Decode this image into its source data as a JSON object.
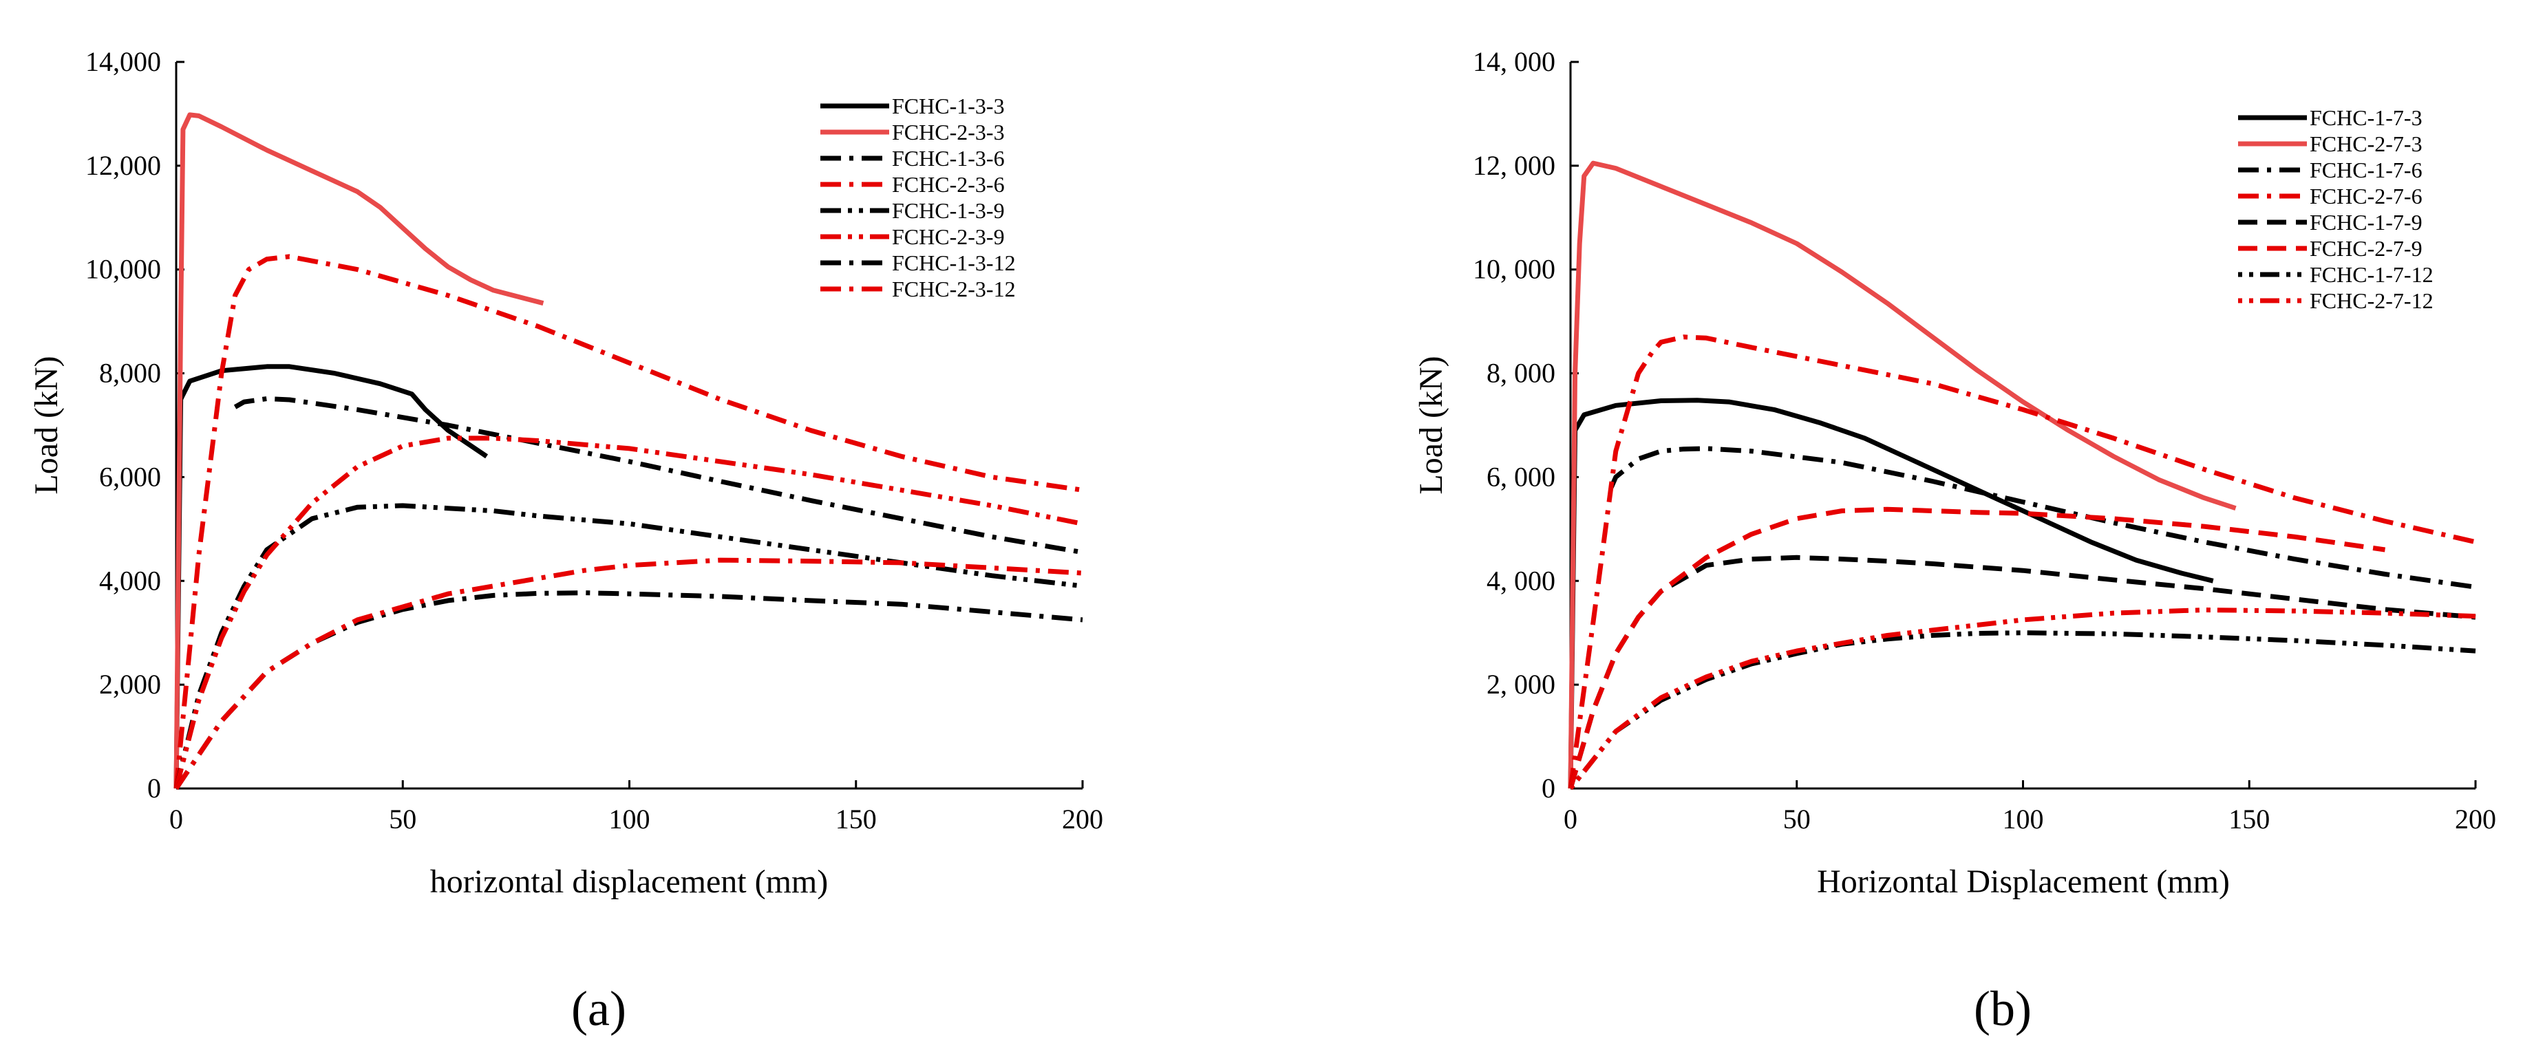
{
  "chart_data": [
    {
      "type": "line",
      "panel_label": "(a)",
      "xlabel": "horizontal displacement (mm)",
      "ylabel": "Load (kN)",
      "xlim": [
        0,
        200
      ],
      "ylim": [
        0,
        14000
      ],
      "xticks": [
        0,
        50,
        100,
        150,
        200
      ],
      "xtick_labels": [
        "0",
        "50",
        "100",
        "150",
        "200"
      ],
      "yticks": [
        0,
        2000,
        4000,
        6000,
        8000,
        10000,
        12000,
        14000
      ],
      "ytick_labels": [
        "0",
        "2,000",
        "4,000",
        "6,000",
        "8,000",
        "10,000",
        "12,000",
        "14,000"
      ],
      "legend_position": "top-right",
      "series": [
        {
          "name": "FCHC-1-3-3",
          "color": "#000000",
          "dash": "solid",
          "x": [
            0,
            1,
            3,
            10,
            20,
            25,
            35,
            45,
            52,
            55,
            60,
            68.5
          ],
          "y": [
            0,
            7500,
            7850,
            8050,
            8130,
            8130,
            8000,
            7800,
            7600,
            7300,
            6900,
            6400
          ]
        },
        {
          "name": "FCHC-2-3-3",
          "color": "#e84a4a",
          "dash": "solid",
          "x": [
            0,
            1,
            1.5,
            3,
            5,
            10,
            20,
            30,
            40,
            45,
            50,
            55,
            60,
            65,
            70,
            81
          ],
          "y": [
            0,
            9000,
            12700,
            12980,
            12960,
            12750,
            12300,
            11900,
            11500,
            11200,
            10800,
            10400,
            10050,
            9800,
            9600,
            9350
          ]
        },
        {
          "name": "FCHC-1-3-6",
          "color": "#000000",
          "dash": "dashdot",
          "x": [
            13,
            15,
            20,
            25,
            40,
            60,
            80,
            100,
            120,
            140,
            160,
            180,
            200
          ],
          "y": [
            7350,
            7450,
            7510,
            7490,
            7300,
            7000,
            6650,
            6300,
            5920,
            5550,
            5200,
            4850,
            4550
          ]
        },
        {
          "name": "FCHC-2-3-6",
          "color": "#e60000",
          "dash": "dashdot",
          "x": [
            0,
            5,
            10,
            13,
            16,
            20,
            25,
            40,
            60,
            80,
            100,
            120,
            140,
            160,
            180,
            200
          ],
          "y": [
            0,
            4500,
            8000,
            9500,
            10000,
            10200,
            10250,
            10000,
            9500,
            8900,
            8200,
            7500,
            6900,
            6400,
            6000,
            5750
          ]
        },
        {
          "name": "FCHC-1-3-9",
          "color": "#000000",
          "dash": "dashdotdot",
          "x": [
            0,
            5,
            10,
            15,
            20,
            30,
            40,
            50,
            60,
            70,
            80,
            100,
            120,
            140,
            160,
            180,
            200
          ],
          "y": [
            0,
            1800,
            3000,
            3900,
            4600,
            5200,
            5420,
            5450,
            5400,
            5350,
            5250,
            5100,
            4850,
            4600,
            4350,
            4100,
            3900
          ]
        },
        {
          "name": "FCHC-2-3-9",
          "color": "#e60000",
          "dash": "dashdotdot",
          "x": [
            0,
            5,
            10,
            15,
            20,
            30,
            40,
            50,
            60,
            70,
            80,
            100,
            120,
            140,
            160,
            180,
            200
          ],
          "y": [
            0,
            1700,
            2900,
            3800,
            4500,
            5500,
            6200,
            6600,
            6750,
            6750,
            6700,
            6550,
            6300,
            6050,
            5750,
            5450,
            5100
          ]
        },
        {
          "name": "FCHC-1-3-12",
          "color": "#000000",
          "dash": "dashdot",
          "x": [
            0,
            10,
            20,
            30,
            40,
            50,
            60,
            70,
            80,
            90,
            100,
            120,
            140,
            160,
            180,
            200
          ],
          "y": [
            0,
            1300,
            2250,
            2800,
            3200,
            3450,
            3620,
            3720,
            3760,
            3770,
            3750,
            3700,
            3620,
            3550,
            3400,
            3250
          ]
        },
        {
          "name": "FCHC-2-3-12",
          "color": "#e60000",
          "dash": "dashdot",
          "x": [
            0,
            10,
            20,
            30,
            40,
            50,
            60,
            70,
            80,
            90,
            100,
            110,
            120,
            140,
            160,
            180,
            200
          ],
          "y": [
            0,
            1300,
            2250,
            2800,
            3250,
            3500,
            3750,
            3900,
            4050,
            4200,
            4300,
            4350,
            4400,
            4380,
            4350,
            4250,
            4150
          ]
        }
      ]
    },
    {
      "type": "line",
      "panel_label": "(b)",
      "xlabel": "Horizontal Displacement (mm)",
      "ylabel": "Load (kN)",
      "xlim": [
        0,
        200
      ],
      "ylim": [
        0,
        14000
      ],
      "xticks": [
        0,
        50,
        100,
        150,
        200
      ],
      "xtick_labels": [
        "0",
        "50",
        "100",
        "150",
        "200"
      ],
      "yticks": [
        0,
        2000,
        4000,
        6000,
        8000,
        10000,
        12000,
        14000
      ],
      "ytick_labels": [
        "0",
        "2, 000",
        "4, 000",
        "6, 000",
        "8, 000",
        "10, 000",
        "12, 000",
        "14, 000"
      ],
      "legend_position": "top-right",
      "series": [
        {
          "name": "FCHC-1-7-3",
          "color": "#000000",
          "dash": "solid",
          "x": [
            0,
            1,
            3,
            10,
            20,
            28,
            35,
            45,
            55,
            65,
            75,
            85,
            95,
            105,
            115,
            125,
            135,
            142
          ],
          "y": [
            0,
            6900,
            7200,
            7380,
            7470,
            7480,
            7450,
            7300,
            7050,
            6750,
            6350,
            5950,
            5550,
            5150,
            4750,
            4400,
            4150,
            4000
          ]
        },
        {
          "name": "FCHC-2-7-3",
          "color": "#e84a4a",
          "dash": "solid",
          "x": [
            0,
            1,
            2,
            3,
            5,
            10,
            20,
            30,
            40,
            50,
            60,
            70,
            80,
            90,
            100,
            110,
            120,
            130,
            140,
            147
          ],
          "y": [
            0,
            8000,
            10500,
            11800,
            12050,
            11950,
            11600,
            11250,
            10900,
            10500,
            9950,
            9350,
            8700,
            8050,
            7450,
            6900,
            6400,
            5950,
            5600,
            5400
          ]
        },
        {
          "name": "FCHC-1-7-6",
          "color": "#000000",
          "dash": "dashdot",
          "x": [
            9,
            10,
            15,
            20,
            25,
            30,
            40,
            60,
            80,
            100,
            120,
            140,
            160,
            180,
            200
          ],
          "y": [
            5800,
            6000,
            6350,
            6500,
            6540,
            6550,
            6500,
            6280,
            5920,
            5520,
            5120,
            4750,
            4420,
            4130,
            3880
          ]
        },
        {
          "name": "FCHC-2-7-6",
          "color": "#e60000",
          "dash": "dashdot",
          "x": [
            0,
            5,
            10,
            15,
            18,
            20,
            25,
            30,
            40,
            60,
            80,
            100,
            120,
            140,
            160,
            180,
            200
          ],
          "y": [
            0,
            3200,
            6500,
            8000,
            8400,
            8600,
            8700,
            8680,
            8500,
            8150,
            7800,
            7300,
            6750,
            6150,
            5600,
            5150,
            4750
          ]
        },
        {
          "name": "FCHC-1-7-9",
          "color": "#000000",
          "dash": "dash",
          "x": [
            0,
            5,
            10,
            15,
            20,
            30,
            40,
            50,
            60,
            70,
            80,
            100,
            120,
            140,
            160,
            180,
            200
          ],
          "y": [
            0,
            1500,
            2600,
            3300,
            3800,
            4300,
            4420,
            4450,
            4420,
            4380,
            4330,
            4200,
            4020,
            3850,
            3650,
            3450,
            3300
          ]
        },
        {
          "name": "FCHC-2-7-9",
          "color": "#e60000",
          "dash": "dash",
          "x": [
            0,
            5,
            10,
            15,
            20,
            30,
            40,
            50,
            60,
            70,
            80,
            90,
            100,
            120,
            140,
            160,
            180
          ],
          "y": [
            0,
            1500,
            2600,
            3300,
            3800,
            4450,
            4900,
            5200,
            5350,
            5380,
            5350,
            5320,
            5300,
            5200,
            5050,
            4850,
            4600
          ]
        },
        {
          "name": "FCHC-1-7-12",
          "color": "#000000",
          "dash": "dotdash",
          "x": [
            0,
            10,
            20,
            30,
            40,
            50,
            60,
            70,
            80,
            90,
            100,
            120,
            140,
            160,
            180,
            200
          ],
          "y": [
            0,
            1100,
            1700,
            2100,
            2400,
            2600,
            2780,
            2880,
            2950,
            2990,
            3000,
            2980,
            2920,
            2850,
            2760,
            2650
          ]
        },
        {
          "name": "FCHC-2-7-12",
          "color": "#e60000",
          "dash": "dotdash",
          "x": [
            0,
            10,
            20,
            30,
            40,
            50,
            60,
            70,
            80,
            90,
            100,
            120,
            140,
            160,
            180,
            200
          ],
          "y": [
            0,
            1100,
            1750,
            2150,
            2450,
            2650,
            2800,
            2950,
            3050,
            3150,
            3250,
            3380,
            3440,
            3420,
            3380,
            3320
          ]
        }
      ]
    }
  ]
}
